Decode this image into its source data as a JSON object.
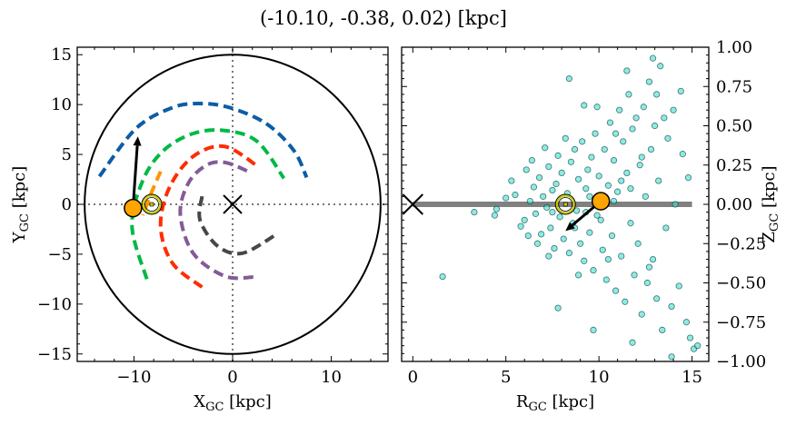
{
  "title": "(-10.10, -0.38, 0.02) [kpc]",
  "colors": {
    "blue": "#0c5da5",
    "green": "#00b945",
    "orange": "#ff9500",
    "red": "#ff2c00",
    "purple": "#845b97",
    "gray": "#474747",
    "scatter": "#40e0d0",
    "star": "#ffa500",
    "sun": "#c8c800"
  },
  "chart_data": [
    {
      "type": "line",
      "xlabel": "X",
      "xlabel_sub": "GC",
      "xlabel_unit": " [kpc]",
      "ylabel": "Y",
      "ylabel_sub": "GC",
      "ylabel_unit": " [kpc]",
      "xlim": [
        -15.75,
        15.75
      ],
      "ylim": [
        -15.75,
        15.75
      ],
      "xticks": [
        "−10",
        "0",
        "10"
      ],
      "xtick_values": [
        -10,
        0,
        10
      ],
      "yticks": [
        "−15",
        "−10",
        "−5",
        "0",
        "5",
        "10",
        "15"
      ],
      "ytick_values": [
        -15,
        -10,
        -5,
        0,
        5,
        10,
        15
      ],
      "boundary_circle_radius": 15,
      "arms": [
        {
          "color": "blue",
          "points": [
            [
              -13.5,
              2.8
            ],
            [
              -9.8,
              7.6
            ],
            [
              -6.1,
              9.7
            ],
            [
              -3.3,
              10.1
            ],
            [
              -0.3,
              9.7
            ],
            [
              3.4,
              8.1
            ],
            [
              6.2,
              5.4
            ],
            [
              7.5,
              2.7
            ]
          ]
        },
        {
          "color": "green",
          "points": [
            [
              -8.7,
              -7.5
            ],
            [
              -10.2,
              -2.2
            ],
            [
              -9.1,
              2.4
            ],
            [
              -7.0,
              5.4
            ],
            [
              -4.0,
              7.1
            ],
            [
              -0.8,
              7.4
            ],
            [
              2.5,
              6.3
            ],
            [
              5.2,
              2.6
            ]
          ]
        },
        {
          "color": "orange",
          "points": [
            [
              -7.3,
              3.3
            ],
            [
              -8.3,
              1.0
            ],
            [
              -9.1,
              -1.1
            ]
          ]
        },
        {
          "color": "red",
          "points": [
            [
              -3.1,
              -8.3
            ],
            [
              -6.1,
              -5.9
            ],
            [
              -7.3,
              -2.2
            ],
            [
              -6.4,
              1.7
            ],
            [
              -4.0,
              4.8
            ],
            [
              -0.8,
              5.8
            ],
            [
              2.7,
              3.7
            ]
          ]
        },
        {
          "color": "purple",
          "points": [
            [
              2.1,
              -7.3
            ],
            [
              -0.8,
              -7.2
            ],
            [
              -4.0,
              -4.9
            ],
            [
              -5.3,
              -1.0
            ],
            [
              -4.5,
              2.1
            ],
            [
              -2.7,
              3.9
            ],
            [
              -0.8,
              4.2
            ],
            [
              1.6,
              3.3
            ]
          ]
        },
        {
          "color": "gray",
          "points": [
            [
              -3.1,
              0.8
            ],
            [
              -3.3,
              -1.6
            ],
            [
              -1.5,
              -4.2
            ],
            [
              1.0,
              -4.9
            ],
            [
              4.3,
              -3.1
            ]
          ]
        }
      ],
      "star": [
        -10.1,
        -0.38
      ],
      "velocity_arrow_tip": [
        -9.6,
        6.8
      ],
      "sun": [
        -8.2,
        0
      ],
      "galactic_center": [
        0,
        0
      ]
    },
    {
      "type": "scatter",
      "xlabel": "R",
      "xlabel_sub": "GC",
      "xlabel_unit": " [kpc]",
      "ylabel": "Z",
      "ylabel_sub": "GC",
      "ylabel_unit": " [kpc]",
      "xlim": [
        -0.6,
        15.9
      ],
      "ylim": [
        -1.0,
        1.0
      ],
      "xticks": [
        "0",
        "5",
        "10",
        "15"
      ],
      "xtick_values": [
        0,
        5,
        10,
        15
      ],
      "yticks": [
        "−1.00",
        "−0.75",
        "−0.50",
        "−0.25",
        "0.00",
        "0.25",
        "0.50",
        "0.75",
        "1.00"
      ],
      "ytick_values": [
        -1,
        -0.75,
        -0.5,
        -0.25,
        0,
        0.25,
        0.5,
        0.75,
        1
      ],
      "disk_line": [
        [
          0,
          0
        ],
        [
          15,
          0
        ]
      ],
      "star": [
        10.1,
        0.02
      ],
      "velocity_arrow_tip": [
        8.2,
        -0.17
      ],
      "sun": [
        8.2,
        0
      ],
      "galactic_center": [
        0,
        0
      ],
      "points": [
        [
          1.6,
          -0.46
        ],
        [
          3.3,
          -0.05
        ],
        [
          4.5,
          -0.03
        ],
        [
          5.3,
          0.15
        ],
        [
          4.4,
          -0.07
        ],
        [
          5.0,
          0.04
        ],
        [
          5.5,
          0.06
        ],
        [
          5.8,
          -0.14
        ],
        [
          6.1,
          0.22
        ],
        [
          6.0,
          -0.1
        ],
        [
          6.3,
          0.02
        ],
        [
          6.5,
          0.11
        ],
        [
          6.6,
          -0.06
        ],
        [
          6.8,
          0.17
        ],
        [
          6.9,
          -0.19
        ],
        [
          7.0,
          0.05
        ],
        [
          7.2,
          -0.02
        ],
        [
          7.3,
          0.24
        ],
        [
          7.4,
          -0.15
        ],
        [
          7.5,
          0.09
        ],
        [
          7.6,
          -0.28
        ],
        [
          7.7,
          0.13
        ],
        [
          7.8,
          0.31
        ],
        [
          7.9,
          -0.08
        ],
        [
          8.0,
          0.2
        ],
        [
          8.1,
          -0.22
        ],
        [
          8.3,
          0.07
        ],
        [
          8.4,
          -0.31
        ],
        [
          8.5,
          0.27
        ],
        [
          8.6,
          -0.12
        ],
        [
          8.7,
          0.35
        ],
        [
          8.8,
          -0.04
        ],
        [
          8.9,
          0.16
        ],
        [
          9.0,
          -0.25
        ],
        [
          9.1,
          0.4
        ],
        [
          9.2,
          -0.36
        ],
        [
          9.3,
          0.1
        ],
        [
          9.4,
          0.22
        ],
        [
          9.5,
          -0.18
        ],
        [
          9.6,
          0.3
        ],
        [
          9.7,
          -0.42
        ],
        [
          9.8,
          0.45
        ],
        [
          9.9,
          -0.07
        ],
        [
          10.0,
          0.18
        ],
        [
          10.2,
          -0.29
        ],
        [
          10.3,
          0.35
        ],
        [
          10.4,
          -0.48
        ],
        [
          10.5,
          0.12
        ],
        [
          10.6,
          0.52
        ],
        [
          10.7,
          -0.2
        ],
        [
          10.8,
          0.28
        ],
        [
          10.9,
          -0.55
        ],
        [
          11.0,
          0.08
        ],
        [
          11.1,
          0.6
        ],
        [
          11.2,
          -0.33
        ],
        [
          11.3,
          0.4
        ],
        [
          11.4,
          -0.62
        ],
        [
          11.5,
          0.2
        ],
        [
          11.6,
          0.7
        ],
        [
          11.7,
          -0.12
        ],
        [
          11.8,
          0.48
        ],
        [
          11.9,
          -0.45
        ],
        [
          12.0,
          0.55
        ],
        [
          12.1,
          -0.25
        ],
        [
          12.2,
          0.25
        ],
        [
          12.3,
          -0.7
        ],
        [
          12.4,
          0.62
        ],
        [
          12.5,
          0.05
        ],
        [
          12.6,
          -0.5
        ],
        [
          12.7,
          0.78
        ],
        [
          12.8,
          0.35
        ],
        [
          12.9,
          -0.35
        ],
        [
          13.0,
          0.5
        ],
        [
          13.1,
          -0.6
        ],
        [
          13.2,
          0.15
        ],
        [
          13.3,
          0.88
        ],
        [
          13.4,
          -0.8
        ],
        [
          13.5,
          0.55
        ],
        [
          13.6,
          -0.15
        ],
        [
          13.7,
          0.42
        ],
        [
          13.9,
          -0.65
        ],
        [
          14.0,
          0.6
        ],
        [
          14.1,
          0.0
        ],
        [
          14.3,
          -0.52
        ],
        [
          14.5,
          0.32
        ],
        [
          14.7,
          -0.75
        ],
        [
          14.8,
          0.17
        ],
        [
          14.9,
          -0.85
        ],
        [
          15.1,
          -0.92
        ],
        [
          15.3,
          -0.9
        ],
        [
          8.4,
          0.8
        ],
        [
          9.2,
          0.63
        ],
        [
          9.7,
          -0.8
        ],
        [
          7.8,
          -0.66
        ],
        [
          9.9,
          0.62
        ],
        [
          10.9,
          0.45
        ],
        [
          11.5,
          0.85
        ],
        [
          12.9,
          0.93
        ],
        [
          11.8,
          -0.88
        ],
        [
          13.9,
          -0.97
        ],
        [
          6.4,
          0.28
        ],
        [
          6.7,
          -0.25
        ],
        [
          7.1,
          0.36
        ],
        [
          7.3,
          -0.33
        ],
        [
          8.2,
          0.42
        ],
        [
          8.9,
          -0.45
        ],
        [
          9.5,
          0.05
        ],
        [
          10.1,
          -0.1
        ],
        [
          10.8,
          0.02
        ],
        [
          11.7,
          0.1
        ],
        [
          6.2,
          -0.2
        ],
        [
          7.5,
          -0.05
        ],
        [
          8.7,
          -0.15
        ],
        [
          9.3,
          -0.05
        ],
        [
          10.5,
          -0.35
        ],
        [
          11.2,
          0.15
        ],
        [
          12.3,
          0.3
        ],
        [
          12.7,
          -0.4
        ],
        [
          13.1,
          0.7
        ],
        [
          14.4,
          0.72
        ]
      ]
    }
  ]
}
